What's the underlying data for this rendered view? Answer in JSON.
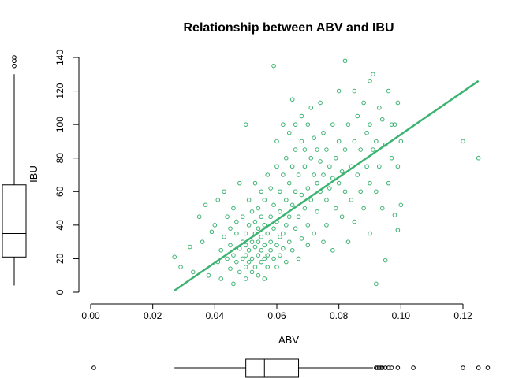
{
  "chart_data": {
    "type": "scatter",
    "title": "Relationship between ABV and IBU",
    "xlabel": "ABV",
    "ylabel": "IBU",
    "xlim": [
      0,
      0.125
    ],
    "ylim": [
      0,
      140
    ],
    "x_ticks": [
      0.0,
      0.02,
      0.04,
      0.06,
      0.08,
      0.1,
      0.12
    ],
    "x_tick_labels": [
      "0.00",
      "0.02",
      "0.04",
      "0.06",
      "0.08",
      "0.10",
      "0.12"
    ],
    "y_ticks": [
      0,
      20,
      40,
      60,
      80,
      100,
      120,
      140
    ],
    "y_tick_labels": [
      "0",
      "20",
      "40",
      "60",
      "80",
      "100",
      "120",
      "140"
    ],
    "point_color": "#3cb371",
    "line_color": "#3cb371",
    "grid": false,
    "series": [
      {
        "points": [
          [
            0.027,
            21
          ],
          [
            0.029,
            15
          ],
          [
            0.032,
            27
          ],
          [
            0.033,
            12
          ],
          [
            0.035,
            45
          ],
          [
            0.036,
            30
          ],
          [
            0.037,
            52
          ],
          [
            0.038,
            10
          ],
          [
            0.039,
            36
          ],
          [
            0.04,
            40
          ],
          [
            0.041,
            18
          ],
          [
            0.041,
            55
          ],
          [
            0.042,
            25
          ],
          [
            0.042,
            8
          ],
          [
            0.043,
            33
          ],
          [
            0.043,
            60
          ],
          [
            0.044,
            20
          ],
          [
            0.044,
            45
          ],
          [
            0.045,
            14
          ],
          [
            0.045,
            38
          ],
          [
            0.045,
            28
          ],
          [
            0.046,
            22
          ],
          [
            0.046,
            50
          ],
          [
            0.046,
            5
          ],
          [
            0.047,
            35
          ],
          [
            0.047,
            18
          ],
          [
            0.047,
            42
          ],
          [
            0.048,
            26
          ],
          [
            0.048,
            12
          ],
          [
            0.048,
            65
          ],
          [
            0.049,
            30
          ],
          [
            0.049,
            20
          ],
          [
            0.049,
            45
          ],
          [
            0.05,
            100
          ],
          [
            0.05,
            28
          ],
          [
            0.05,
            15
          ],
          [
            0.05,
            35
          ],
          [
            0.05,
            22
          ],
          [
            0.05,
            8
          ],
          [
            0.051,
            40
          ],
          [
            0.051,
            25
          ],
          [
            0.051,
            55
          ],
          [
            0.051,
            18
          ],
          [
            0.052,
            30
          ],
          [
            0.052,
            12
          ],
          [
            0.052,
            48
          ],
          [
            0.052,
            20
          ],
          [
            0.053,
            35
          ],
          [
            0.053,
            27
          ],
          [
            0.053,
            65
          ],
          [
            0.053,
            15
          ],
          [
            0.053,
            42
          ],
          [
            0.054,
            22
          ],
          [
            0.054,
            30
          ],
          [
            0.054,
            10
          ],
          [
            0.054,
            50
          ],
          [
            0.054,
            38
          ],
          [
            0.055,
            25
          ],
          [
            0.055,
            18
          ],
          [
            0.055,
            45
          ],
          [
            0.055,
            60
          ],
          [
            0.055,
            33
          ],
          [
            0.056,
            20
          ],
          [
            0.056,
            28
          ],
          [
            0.056,
            55
          ],
          [
            0.056,
            40
          ],
          [
            0.056,
            8
          ],
          [
            0.057,
            35
          ],
          [
            0.057,
            22
          ],
          [
            0.057,
            70
          ],
          [
            0.057,
            15
          ],
          [
            0.058,
            30
          ],
          [
            0.058,
            45
          ],
          [
            0.058,
            25
          ],
          [
            0.058,
            62
          ],
          [
            0.059,
            135
          ],
          [
            0.059,
            38
          ],
          [
            0.059,
            20
          ],
          [
            0.059,
            52
          ],
          [
            0.06,
            28
          ],
          [
            0.06,
            75
          ],
          [
            0.06,
            42
          ],
          [
            0.06,
            15
          ],
          [
            0.06,
            90
          ],
          [
            0.061,
            33
          ],
          [
            0.061,
            60
          ],
          [
            0.061,
            22
          ],
          [
            0.061,
            48
          ],
          [
            0.062,
            100
          ],
          [
            0.062,
            35
          ],
          [
            0.062,
            70
          ],
          [
            0.062,
            26
          ],
          [
            0.063,
            55
          ],
          [
            0.063,
            40
          ],
          [
            0.063,
            80
          ],
          [
            0.063,
            18
          ],
          [
            0.064,
            65
          ],
          [
            0.064,
            30
          ],
          [
            0.064,
            95
          ],
          [
            0.064,
            45
          ],
          [
            0.065,
            115
          ],
          [
            0.065,
            52
          ],
          [
            0.065,
            75
          ],
          [
            0.065,
            25
          ],
          [
            0.066,
            60
          ],
          [
            0.066,
            85
          ],
          [
            0.066,
            38
          ],
          [
            0.066,
            100
          ],
          [
            0.067,
            70
          ],
          [
            0.067,
            45
          ],
          [
            0.067,
            20
          ],
          [
            0.068,
            90
          ],
          [
            0.068,
            58
          ],
          [
            0.068,
            32
          ],
          [
            0.068,
            105
          ],
          [
            0.069,
            75
          ],
          [
            0.069,
            50
          ],
          [
            0.069,
            85
          ],
          [
            0.07,
            62
          ],
          [
            0.07,
            40
          ],
          [
            0.07,
            100
          ],
          [
            0.07,
            28
          ],
          [
            0.071,
            110
          ],
          [
            0.071,
            80
          ],
          [
            0.071,
            55
          ],
          [
            0.072,
            70
          ],
          [
            0.072,
            92
          ],
          [
            0.072,
            35
          ],
          [
            0.073,
            65
          ],
          [
            0.073,
            85
          ],
          [
            0.073,
            48
          ],
          [
            0.074,
            113
          ],
          [
            0.074,
            78
          ],
          [
            0.074,
            60
          ],
          [
            0.075,
            70
          ],
          [
            0.075,
            30
          ],
          [
            0.075,
            95
          ],
          [
            0.076,
            85
          ],
          [
            0.076,
            55
          ],
          [
            0.076,
            40
          ],
          [
            0.077,
            75
          ],
          [
            0.077,
            62
          ],
          [
            0.078,
            100
          ],
          [
            0.078,
            68
          ],
          [
            0.078,
            25
          ],
          [
            0.079,
            80
          ],
          [
            0.079,
            50
          ],
          [
            0.08,
            120
          ],
          [
            0.08,
            65
          ],
          [
            0.08,
            90
          ],
          [
            0.081,
            72
          ],
          [
            0.081,
            45
          ],
          [
            0.082,
            138
          ],
          [
            0.082,
            85
          ],
          [
            0.082,
            60
          ],
          [
            0.083,
            100
          ],
          [
            0.083,
            30
          ],
          [
            0.084,
            75
          ],
          [
            0.084,
            55
          ],
          [
            0.085,
            120
          ],
          [
            0.085,
            90
          ],
          [
            0.085,
            42
          ],
          [
            0.086,
            70
          ],
          [
            0.086,
            105
          ],
          [
            0.087,
            60
          ],
          [
            0.087,
            85
          ],
          [
            0.088,
            113
          ],
          [
            0.088,
            50
          ],
          [
            0.089,
            95
          ],
          [
            0.089,
            75
          ],
          [
            0.09,
            126
          ],
          [
            0.09,
            100
          ],
          [
            0.09,
            65
          ],
          [
            0.09,
            35
          ],
          [
            0.091,
            130
          ],
          [
            0.091,
            85
          ],
          [
            0.092,
            90
          ],
          [
            0.092,
            60
          ],
          [
            0.092,
            5
          ],
          [
            0.093,
            110
          ],
          [
            0.093,
            75
          ],
          [
            0.094,
            103
          ],
          [
            0.094,
            50
          ],
          [
            0.095,
            88
          ],
          [
            0.095,
            19
          ],
          [
            0.096,
            120
          ],
          [
            0.096,
            65
          ],
          [
            0.097,
            100
          ],
          [
            0.097,
            80
          ],
          [
            0.098,
            100
          ],
          [
            0.098,
            46
          ],
          [
            0.099,
            113
          ],
          [
            0.099,
            75
          ],
          [
            0.099,
            37
          ],
          [
            0.1,
            90
          ],
          [
            0.1,
            52
          ],
          [
            0.12,
            90
          ],
          [
            0.125,
            80
          ]
        ]
      }
    ],
    "fit_line": {
      "x": [
        0.027,
        0.125
      ],
      "y": [
        1,
        126
      ]
    },
    "x_boxplot": {
      "whisker_low": 0.027,
      "q1": 0.05,
      "median": 0.056,
      "q3": 0.067,
      "whisker_high": 0.091,
      "outliers": [
        0.001,
        0.092,
        0.0925,
        0.093,
        0.0935,
        0.094,
        0.095,
        0.096,
        0.097,
        0.099,
        0.104,
        0.12,
        0.125,
        0.128
      ]
    },
    "y_boxplot": {
      "whisker_low": 4,
      "q1": 21,
      "median": 35,
      "q3": 64,
      "whisker_high": 130,
      "outliers": [
        135,
        138,
        140
      ]
    }
  }
}
